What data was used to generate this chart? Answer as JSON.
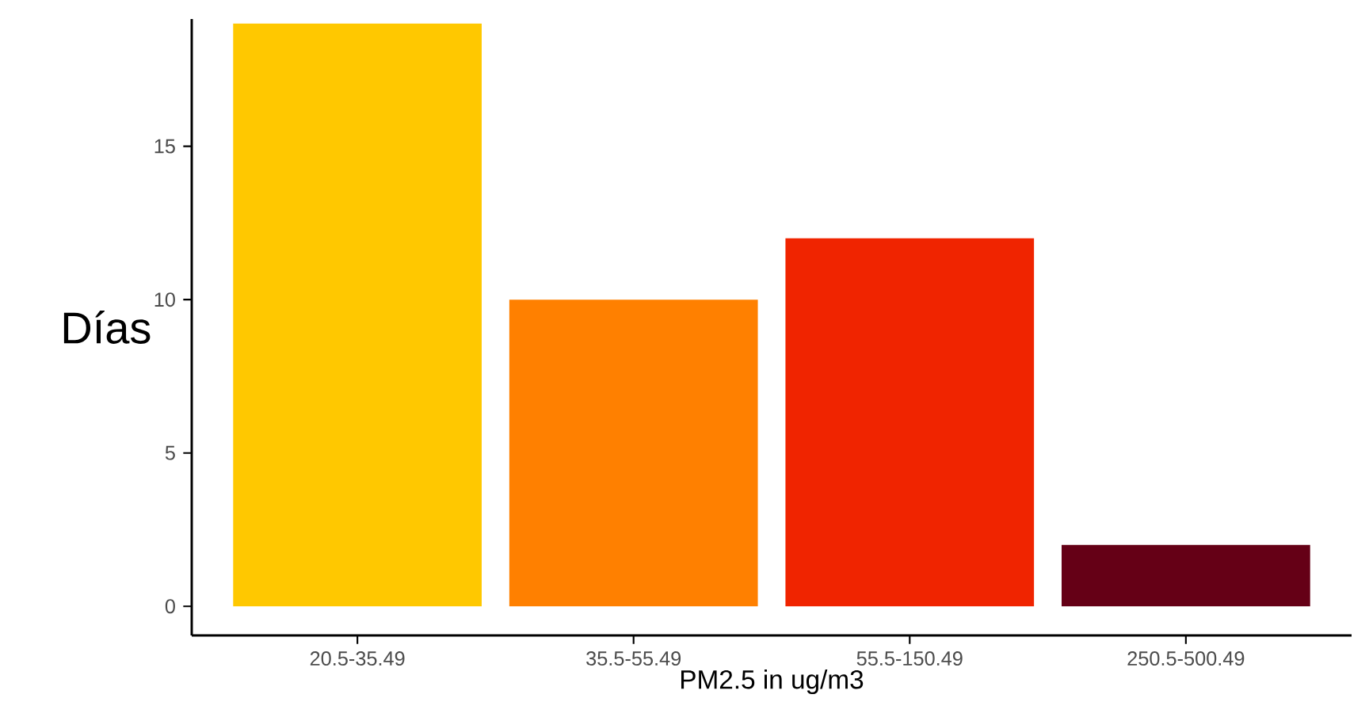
{
  "chart_data": {
    "type": "bar",
    "categories": [
      "20.5-35.49",
      "35.5-55.49",
      "55.5-150.49",
      "250.5-500.49"
    ],
    "values": [
      19,
      10,
      12,
      2
    ],
    "colors": [
      "#ffc800",
      "#ff8000",
      "#f02400",
      "#650016"
    ],
    "xlabel": "PM2.5 in ug/m3",
    "ylabel": "Días",
    "ylim": [
      -0.95,
      19.15
    ],
    "yticks": [
      0,
      5,
      10,
      15
    ]
  }
}
